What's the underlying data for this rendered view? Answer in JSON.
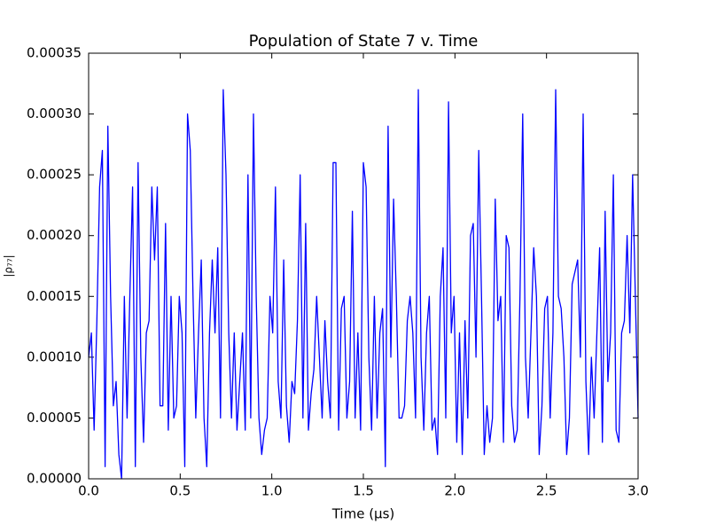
{
  "chart_data": {
    "type": "line",
    "title": "Population of State 7 v. Time",
    "xlabel": "Time (μs)",
    "ylabel": "|ρ₇₇|",
    "x": [
      0,
      0.015,
      0.03,
      0.045,
      0.06,
      0.075,
      0.09,
      0.105,
      0.12,
      0.135,
      0.15,
      0.165,
      0.18,
      0.195,
      0.21,
      0.225,
      0.24,
      0.255,
      0.27,
      0.285,
      0.3,
      0.315,
      0.33,
      0.345,
      0.36,
      0.375,
      0.39,
      0.405,
      0.42,
      0.435,
      0.45,
      0.465,
      0.48,
      0.495,
      0.51,
      0.525,
      0.54,
      0.555,
      0.57,
      0.585,
      0.6,
      0.615,
      0.63,
      0.645,
      0.66,
      0.675,
      0.69,
      0.705,
      0.72,
      0.735,
      0.75,
      0.765,
      0.78,
      0.795,
      0.81,
      0.825,
      0.84,
      0.855,
      0.87,
      0.885,
      0.9,
      0.915,
      0.93,
      0.945,
      0.96,
      0.975,
      0.99,
      1.005,
      1.02,
      1.035,
      1.05,
      1.065,
      1.08,
      1.095,
      1.11,
      1.125,
      1.14,
      1.155,
      1.17,
      1.185,
      1.2,
      1.215,
      1.23,
      1.245,
      1.26,
      1.275,
      1.29,
      1.305,
      1.32,
      1.335,
      1.35,
      1.365,
      1.38,
      1.395,
      1.41,
      1.425,
      1.44,
      1.455,
      1.47,
      1.485,
      1.5,
      1.515,
      1.53,
      1.545,
      1.56,
      1.575,
      1.59,
      1.605,
      1.62,
      1.635,
      1.65,
      1.665,
      1.68,
      1.695,
      1.71,
      1.725,
      1.74,
      1.755,
      1.77,
      1.785,
      1.8,
      1.815,
      1.83,
      1.845,
      1.86,
      1.875,
      1.89,
      1.905,
      1.92,
      1.935,
      1.95,
      1.965,
      1.98,
      1.995,
      2.01,
      2.025,
      2.04,
      2.055,
      2.07,
      2.085,
      2.1,
      2.115,
      2.13,
      2.145,
      2.16,
      2.175,
      2.19,
      2.205,
      2.22,
      2.235,
      2.25,
      2.265,
      2.28,
      2.295,
      2.31,
      2.325,
      2.34,
      2.355,
      2.37,
      2.385,
      2.4,
      2.415,
      2.43,
      2.445,
      2.46,
      2.475,
      2.49,
      2.505,
      2.52,
      2.535,
      2.55,
      2.565,
      2.58,
      2.595,
      2.61,
      2.625,
      2.64,
      2.655,
      2.67,
      2.685,
      2.7,
      2.715,
      2.73,
      2.745,
      2.76,
      2.775,
      2.79,
      2.805,
      2.82,
      2.835,
      2.85,
      2.865,
      2.88,
      2.895,
      2.91,
      2.925,
      2.94,
      2.955,
      2.97,
      2.985,
      3
    ],
    "series": [
      {
        "color": "#0000ff",
        "values": [
          0.0001,
          0.00012,
          4e-05,
          0.00013,
          0.00024,
          0.00027,
          1e-05,
          0.00029,
          0.00015,
          6e-05,
          8e-05,
          2e-05,
          0,
          0.00015,
          5e-05,
          0.00015,
          0.00024,
          1e-05,
          0.00026,
          0.0001,
          3e-05,
          0.00012,
          0.00013,
          0.00024,
          0.00018,
          0.00024,
          6e-05,
          6e-05,
          0.00021,
          4e-05,
          0.00015,
          5e-05,
          6e-05,
          0.00015,
          0.00012,
          1e-05,
          0.0003,
          0.00027,
          0.00015,
          5e-05,
          0.00012,
          0.00018,
          5e-05,
          1e-05,
          0.00012,
          0.00018,
          0.00012,
          0.00019,
          5e-05,
          0.00032,
          0.00025,
          0.00012,
          5e-05,
          0.00012,
          4e-05,
          8e-05,
          0.00012,
          4e-05,
          0.00025,
          5e-05,
          0.0003,
          0.00015,
          5e-05,
          2e-05,
          4e-05,
          5e-05,
          0.00015,
          0.00012,
          0.00024,
          8e-05,
          5e-05,
          0.00018,
          6e-05,
          3e-05,
          8e-05,
          7e-05,
          0.00013,
          0.00025,
          5e-05,
          0.00021,
          4e-05,
          7e-05,
          9e-05,
          0.00015,
          0.0001,
          5e-05,
          0.00013,
          8e-05,
          5e-05,
          0.00026,
          0.00026,
          4e-05,
          0.00014,
          0.00015,
          5e-05,
          8e-05,
          0.00022,
          5e-05,
          0.00012,
          4e-05,
          0.00026,
          0.00024,
          0.0001,
          4e-05,
          0.00015,
          5e-05,
          0.00012,
          0.00014,
          1e-05,
          0.00029,
          0.0001,
          0.00023,
          0.00015,
          5e-05,
          5e-05,
          6e-05,
          0.00013,
          0.00015,
          0.00012,
          5e-05,
          0.00032,
          0.0001,
          4e-05,
          0.00012,
          0.00015,
          4e-05,
          5e-05,
          2e-05,
          0.00015,
          0.00019,
          5e-05,
          0.00031,
          0.00012,
          0.00015,
          3e-05,
          0.00012,
          2e-05,
          0.00013,
          5e-05,
          0.0002,
          0.00021,
          0.0001,
          0.00027,
          0.00015,
          2e-05,
          6e-05,
          3e-05,
          5e-05,
          0.00023,
          0.00013,
          0.00015,
          3e-05,
          0.0002,
          0.00019,
          6e-05,
          3e-05,
          4e-05,
          0.00015,
          0.0003,
          0.0001,
          5e-05,
          0.00012,
          0.00019,
          0.00015,
          2e-05,
          6e-05,
          0.00014,
          0.00015,
          5e-05,
          0.00012,
          0.00032,
          0.00015,
          0.00014,
          0.0001,
          2e-05,
          5e-05,
          0.00016,
          0.00017,
          0.00018,
          0.0001,
          0.0003,
          8e-05,
          2e-05,
          0.0001,
          5e-05,
          0.00012,
          0.00019,
          3e-05,
          0.00022,
          8e-05,
          0.00012,
          0.00025,
          4e-05,
          3e-05,
          0.00012,
          0.00013,
          0.0002,
          0.00012,
          0.00025,
          0.00015,
          5e-05
        ]
      }
    ],
    "xlim": [
      0,
      3
    ],
    "xticks": [
      {
        "value": 0,
        "label": "0.0"
      },
      {
        "value": 0.5,
        "label": "0.5"
      },
      {
        "value": 1,
        "label": "1.0"
      },
      {
        "value": 1.5,
        "label": "1.5"
      },
      {
        "value": 2,
        "label": "2.0"
      },
      {
        "value": 2.5,
        "label": "2.5"
      },
      {
        "value": 3,
        "label": "3.0"
      }
    ],
    "ylim": [
      0,
      0.00035
    ],
    "yticks": [
      {
        "value": 0,
        "label": "0.00000"
      },
      {
        "value": 5e-05,
        "label": "0.00005"
      },
      {
        "value": 0.0001,
        "label": "0.00010"
      },
      {
        "value": 0.00015,
        "label": "0.00015"
      },
      {
        "value": 0.0002,
        "label": "0.00020"
      },
      {
        "value": 0.00025,
        "label": "0.00025"
      },
      {
        "value": 0.0003,
        "label": "0.00030"
      },
      {
        "value": 0.00035,
        "label": "0.00035"
      }
    ],
    "grid": false
  }
}
